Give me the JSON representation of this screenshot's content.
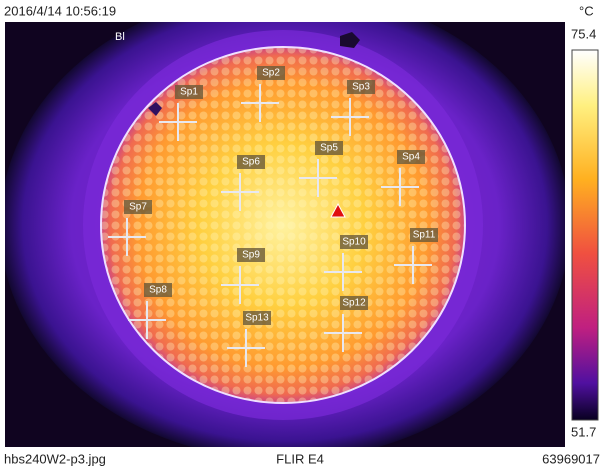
{
  "header": {
    "timestamp": "2016/4/14 10:56:19",
    "unit": "°C"
  },
  "scale": {
    "max": "75.4",
    "min": "51.7"
  },
  "box_label": "Bl",
  "spots": [
    "Sp1",
    "Sp2",
    "Sp3",
    "Sp4",
    "Sp5",
    "Sp6",
    "Sp7",
    "Sp8",
    "Sp9",
    "Sp10",
    "Sp11",
    "Sp12",
    "Sp13"
  ],
  "footer": {
    "filename": "hbs240W2-p3.jpg",
    "camera": "FLIR E4",
    "serial": "63969017"
  }
}
